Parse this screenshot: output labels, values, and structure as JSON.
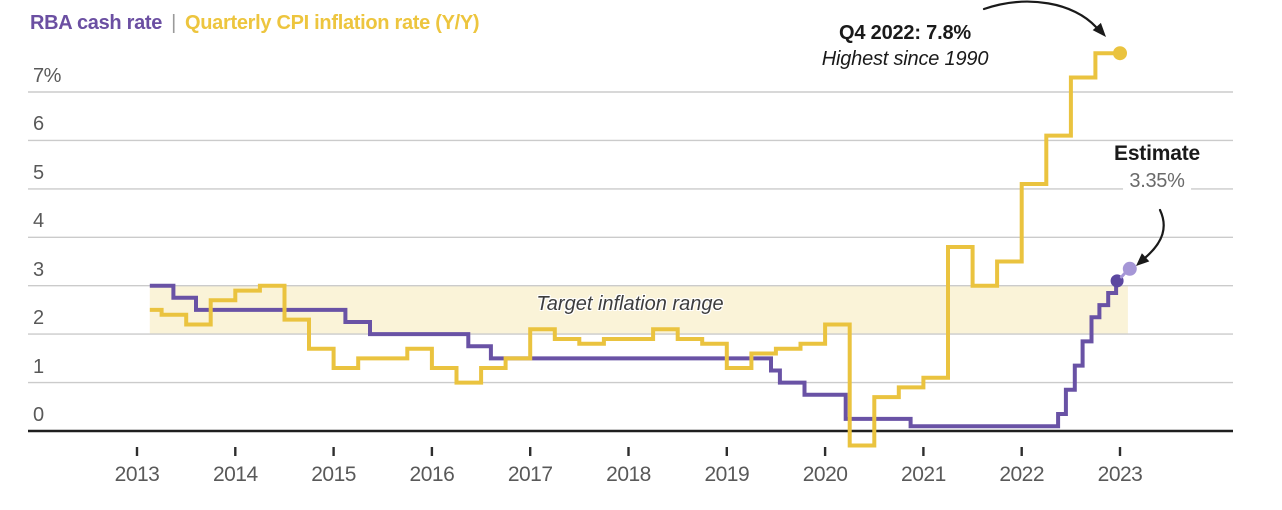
{
  "header": {
    "series1_label": "RBA cash rate",
    "separator": "|",
    "series2_label": "Quarterly CPI inflation rate (Y/Y)"
  },
  "annotations": {
    "peak_title": "Q4 2022: 7.8%",
    "peak_subtitle": "Highest since 1990",
    "estimate_label": "Estimate",
    "estimate_value": "3.35%",
    "band_label": "Target inflation range"
  },
  "colors": {
    "cash_purple": "#6952a5",
    "cash_dot_dark": "#5b47a0",
    "estimate_dot_light": "#a596d6",
    "cpi_yellow": "#eac33f",
    "band_fill": "#faf3d8",
    "gridline": "#cbcbcb",
    "baseline": "#1f1f1f",
    "tick": "#2e2e2e",
    "axis_text": "#595959",
    "title_purple": "#6b4fa2",
    "title_yellow": "#edc53e",
    "title_separator": "#9a9a9a",
    "annotation_text": "#1a1a1a",
    "estimate_value_text": "#6a6a6a",
    "band_label_text": "#3d3d3d",
    "arrow": "#1a1a1a"
  },
  "chart_data": {
    "type": "line",
    "subtype": "step",
    "title": "RBA cash rate | Quarterly CPI inflation rate (Y/Y)",
    "x_axis": {
      "ticks": [
        2013,
        2014,
        2015,
        2016,
        2017,
        2018,
        2019,
        2020,
        2021,
        2022,
        2023
      ]
    },
    "y_axis": {
      "labels": [
        "7%",
        "6",
        "5",
        "4",
        "3",
        "2",
        "1",
        "0"
      ],
      "values": [
        7,
        6,
        5,
        4,
        3,
        2,
        1,
        0
      ]
    },
    "ylim": [
      -0.5,
      8.2
    ],
    "x_start": 2013.13,
    "target_band": {
      "from_pct": 2,
      "to_pct": 3,
      "x_range": [
        2013.13,
        2023.08
      ],
      "label": "Target inflation range"
    },
    "series": [
      {
        "name": "RBA cash rate",
        "unit": "%",
        "format": "[decimal_year, rate_pct] step change points",
        "change_points": [
          [
            2013.13,
            3.0
          ],
          [
            2013.37,
            2.75
          ],
          [
            2013.6,
            2.5
          ],
          [
            2015.12,
            2.25
          ],
          [
            2015.37,
            2.0
          ],
          [
            2016.37,
            1.75
          ],
          [
            2016.6,
            1.5
          ],
          [
            2019.45,
            1.25
          ],
          [
            2019.54,
            1.0
          ],
          [
            2019.79,
            0.75
          ],
          [
            2020.21,
            0.25
          ],
          [
            2020.87,
            0.1
          ],
          [
            2022.37,
            0.35
          ],
          [
            2022.45,
            0.85
          ],
          [
            2022.54,
            1.35
          ],
          [
            2022.62,
            1.85
          ],
          [
            2022.71,
            2.35
          ],
          [
            2022.79,
            2.6
          ],
          [
            2022.88,
            2.85
          ],
          [
            2022.96,
            3.1
          ]
        ],
        "end_point": [
          2022.97,
          3.1
        ],
        "estimate_point": [
          2023.1,
          3.35
        ],
        "estimate_label": "Estimate 3.35%"
      },
      {
        "name": "Quarterly CPI inflation rate (Y/Y)",
        "unit": "%",
        "format": "consecutive quarterly Y/Y values starting at start_quarter",
        "start_quarter": "2013-Q1",
        "end_quarter": "2022-Q4",
        "values": [
          2.5,
          2.4,
          2.2,
          2.7,
          2.9,
          3.0,
          2.3,
          1.7,
          1.3,
          1.5,
          1.5,
          1.7,
          1.3,
          1.0,
          1.3,
          1.5,
          2.1,
          1.9,
          1.8,
          1.9,
          1.9,
          2.1,
          1.9,
          1.8,
          1.3,
          1.6,
          1.7,
          1.8,
          2.2,
          -0.3,
          0.7,
          0.9,
          1.1,
          3.8,
          3.0,
          3.5,
          5.1,
          6.1,
          7.3,
          7.8
        ],
        "end_point": [
          2023.0,
          7.8
        ],
        "peak_label": "Q4 2022: 7.8% Highest since 1990"
      }
    ]
  }
}
